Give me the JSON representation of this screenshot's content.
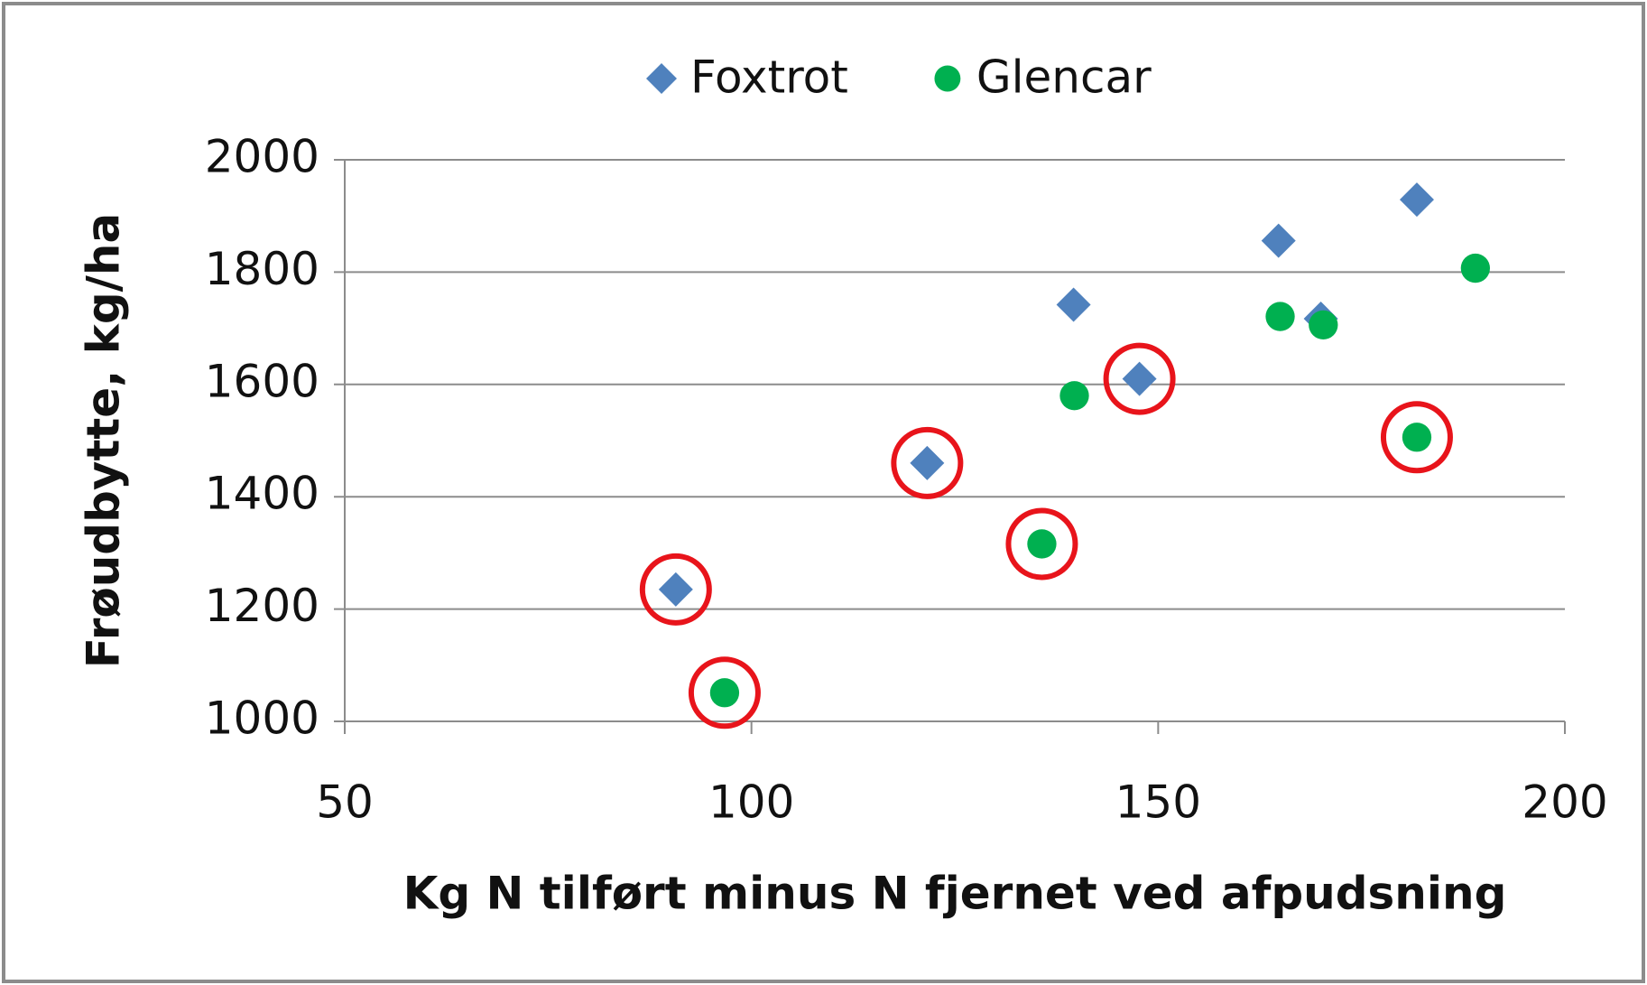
{
  "chart_data": {
    "type": "scatter",
    "x_label": "Kg N tilført minus N fjernet ved afpudsning",
    "y_label": "Frøudbytte, kg/ha",
    "xlim": [
      50,
      200
    ],
    "xticks": [
      50,
      100,
      150,
      200
    ],
    "ylim": [
      1000,
      2000
    ],
    "yticks": [
      1000,
      1200,
      1400,
      1600,
      1800,
      2000
    ],
    "grid": true,
    "legend": "top",
    "highlight_color": "#e8141b",
    "series": [
      {
        "name": "Foxtrot",
        "color": "#4f81bd",
        "marker": "diamond",
        "x": [
          90.7,
          121.6,
          139.6,
          147.7,
          164.8,
          170,
          181.8
        ],
        "values": [
          1235,
          1460,
          1742,
          1610,
          1856,
          1717,
          1929
        ],
        "highlight": [
          0,
          1,
          3
        ]
      },
      {
        "name": "Glencar",
        "color": "#00b050",
        "marker": "circle",
        "x": [
          96.7,
          135.7,
          139.7,
          165,
          170.3,
          181.8,
          189
        ],
        "values": [
          1051,
          1316,
          1580,
          1721,
          1706,
          1506,
          1807
        ],
        "highlight": [
          0,
          1,
          5
        ]
      }
    ]
  }
}
